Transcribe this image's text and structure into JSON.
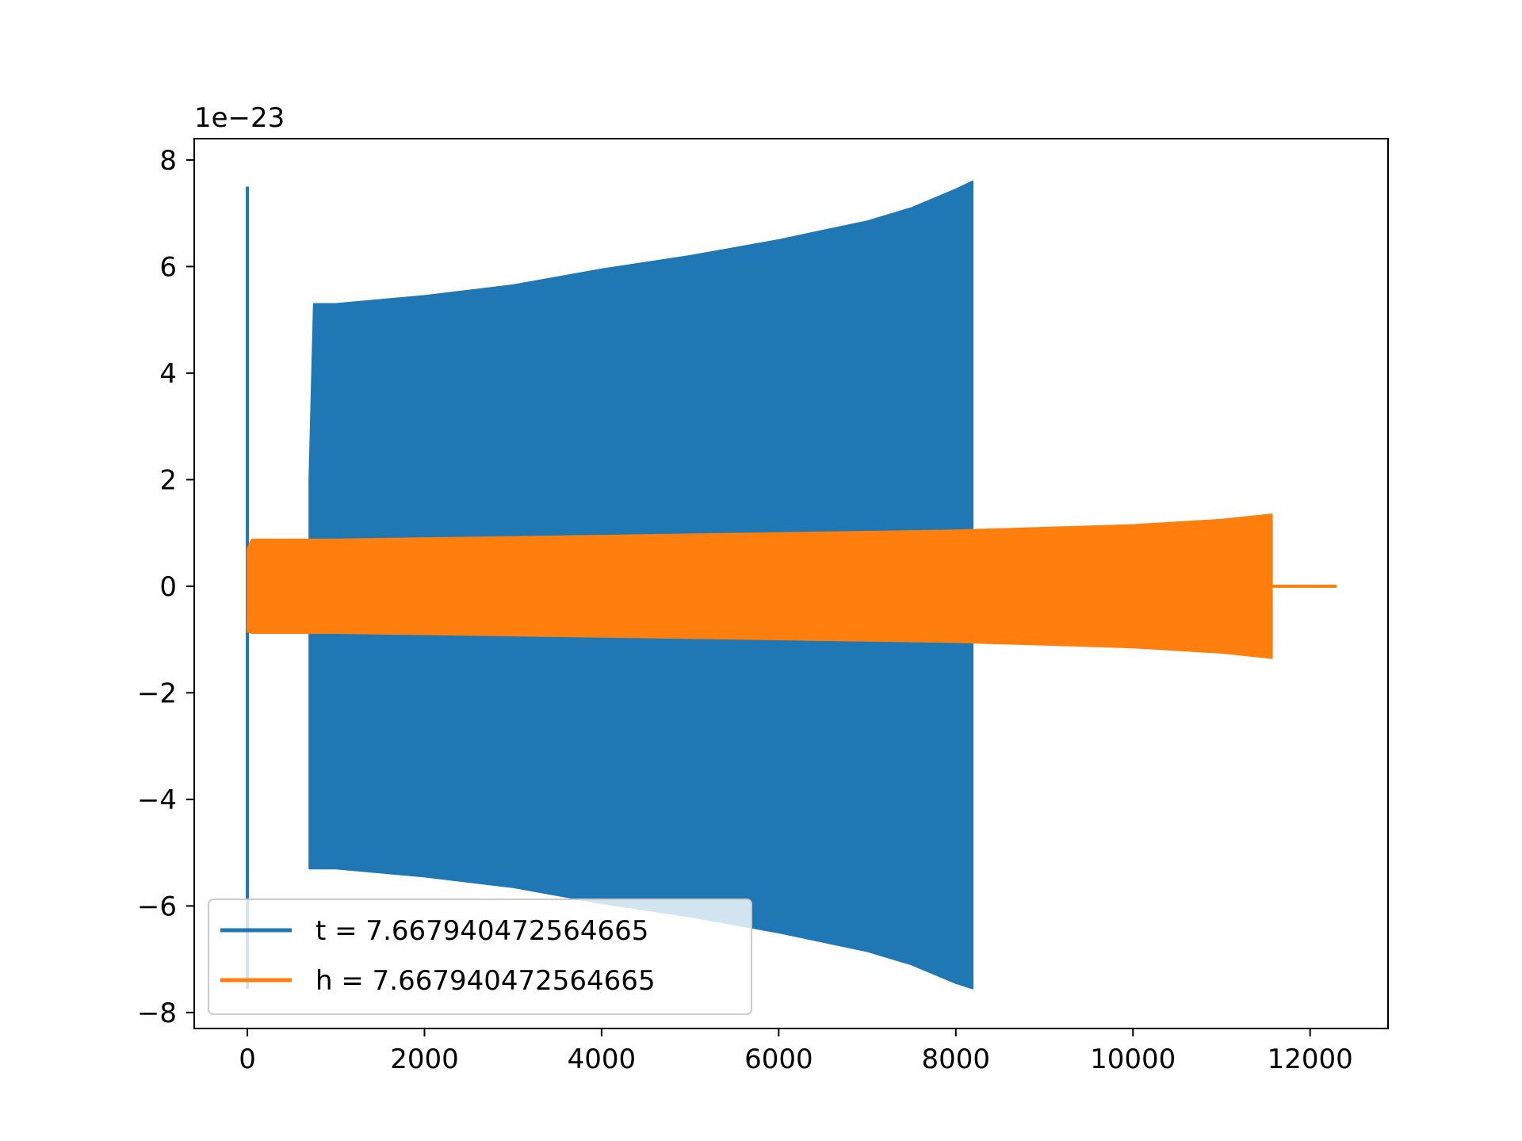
{
  "chart_data": {
    "type": "line",
    "title": "",
    "xlabel": "",
    "ylabel": "",
    "xlim": [
      -600,
      12880
    ],
    "ylim": [
      -8.3,
      8.4
    ],
    "y_offset_label": "1e−23",
    "xticks": [
      {
        "value": 0,
        "label": "0"
      },
      {
        "value": 2000,
        "label": "2000"
      },
      {
        "value": 4000,
        "label": "4000"
      },
      {
        "value": 6000,
        "label": "6000"
      },
      {
        "value": 8000,
        "label": "8000"
      },
      {
        "value": 10000,
        "label": "10000"
      },
      {
        "value": 12000,
        "label": "12000"
      }
    ],
    "yticks": [
      {
        "value": 8,
        "label": "8"
      },
      {
        "value": 6,
        "label": "6"
      },
      {
        "value": 4,
        "label": "4"
      },
      {
        "value": 2,
        "label": "2"
      },
      {
        "value": 0,
        "label": "0"
      },
      {
        "value": -2,
        "label": "−2"
      },
      {
        "value": -4,
        "label": "−4"
      },
      {
        "value": -6,
        "label": "−6"
      },
      {
        "value": -8,
        "label": "−8"
      }
    ],
    "grid": false,
    "legend_position": "lower-left",
    "series": [
      {
        "name": "t = 7.667940472564665",
        "color": "#1f77b4",
        "envelope_upper": [
          [
            700,
            2.0
          ],
          [
            750,
            5.3
          ],
          [
            1000,
            5.3
          ],
          [
            2000,
            5.45
          ],
          [
            3000,
            5.65
          ],
          [
            4000,
            5.95
          ],
          [
            5000,
            6.2
          ],
          [
            6000,
            6.5
          ],
          [
            7000,
            6.85
          ],
          [
            7500,
            7.1
          ],
          [
            8000,
            7.45
          ],
          [
            8190,
            7.6
          ]
        ],
        "envelope_lower": [
          [
            700,
            -5.3
          ],
          [
            1000,
            -5.3
          ],
          [
            2000,
            -5.45
          ],
          [
            3000,
            -5.65
          ],
          [
            4000,
            -5.95
          ],
          [
            5000,
            -6.2
          ],
          [
            6000,
            -6.5
          ],
          [
            7000,
            -6.85
          ],
          [
            7500,
            -7.1
          ],
          [
            8000,
            -7.45
          ],
          [
            8190,
            -7.55
          ]
        ],
        "spike": {
          "x": 0,
          "max": 7.5,
          "min": -7.55
        }
      },
      {
        "name": "h = 7.667940472564665",
        "color": "#ff7f0e",
        "envelope_upper": [
          [
            0,
            0.7
          ],
          [
            50,
            0.88
          ],
          [
            1000,
            0.88
          ],
          [
            4000,
            0.95
          ],
          [
            8000,
            1.05
          ],
          [
            10000,
            1.15
          ],
          [
            11000,
            1.25
          ],
          [
            11570,
            1.35
          ]
        ],
        "envelope_lower": [
          [
            0,
            -0.85
          ],
          [
            50,
            -0.88
          ],
          [
            1000,
            -0.88
          ],
          [
            4000,
            -0.95
          ],
          [
            8000,
            -1.05
          ],
          [
            10000,
            -1.15
          ],
          [
            11000,
            -1.25
          ],
          [
            11570,
            -1.35
          ]
        ],
        "tail": [
          [
            11570,
            0.0
          ],
          [
            12300,
            0.0
          ]
        ]
      }
    ]
  }
}
